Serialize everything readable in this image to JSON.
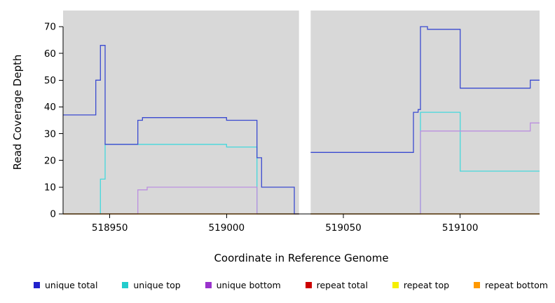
{
  "chart_data": {
    "type": "line",
    "subtype": "step",
    "title": "",
    "xlabel": "Coordinate in Reference Genome",
    "ylabel": "Read Coverage Depth",
    "xlim": [
      518930,
      519134
    ],
    "ylim": [
      0,
      70
    ],
    "xticks": [
      518950,
      519000,
      519050,
      519100
    ],
    "yticks": [
      0,
      10,
      20,
      30,
      40,
      50,
      60,
      70
    ],
    "grid": "off",
    "legend_position": "bottom",
    "panel_bg": "#d8d8d8",
    "gap_region": [
      519031,
      519036
    ],
    "series": [
      {
        "name": "unique-total",
        "label": "unique total",
        "color": "#3a4ad0",
        "swatch": "#2222cc",
        "z": 6,
        "segments": [
          {
            "points": [
              [
                518930,
                37
              ],
              [
                518944,
                50
              ],
              [
                518946,
                63
              ],
              [
                518948,
                26
              ],
              [
                518962,
                35
              ],
              [
                518964,
                36
              ],
              [
                519000,
                35
              ],
              [
                519013,
                21
              ],
              [
                519015,
                10
              ],
              [
                519029,
                0
              ]
            ],
            "xend": 519031
          },
          {
            "points": [
              [
                519036,
                23
              ],
              [
                519080,
                38
              ],
              [
                519082,
                39
              ],
              [
                519083,
                70
              ],
              [
                519086,
                69
              ],
              [
                519100,
                47
              ],
              [
                519130,
                50
              ]
            ],
            "xend": 519134
          }
        ]
      },
      {
        "name": "unique-top",
        "label": "unique top",
        "color": "#45d8dc",
        "swatch": "#22cccc",
        "z": 1,
        "segments": [
          {
            "points": [
              [
                518930,
                0
              ],
              [
                518946,
                13
              ],
              [
                518948,
                26
              ],
              [
                519000,
                25
              ],
              [
                519013,
                0
              ]
            ],
            "xend": 519031
          },
          {
            "points": [
              [
                519036,
                0
              ],
              [
                519083,
                38
              ],
              [
                519100,
                16
              ]
            ],
            "xend": 519134
          }
        ]
      },
      {
        "name": "unique-bottom",
        "label": "unique bottom",
        "color": "#bb8fdf",
        "swatch": "#9933cc",
        "z": 2,
        "segments": [
          {
            "points": [
              [
                518930,
                0
              ],
              [
                518962,
                9
              ],
              [
                518966,
                10
              ],
              [
                519013,
                0
              ]
            ],
            "xend": 519031
          },
          {
            "points": [
              [
                519036,
                0
              ],
              [
                519083,
                31
              ],
              [
                519130,
                34
              ]
            ],
            "xend": 519134
          }
        ]
      },
      {
        "name": "repeat-total",
        "label": "repeat total",
        "color": "#cc2222",
        "swatch": "#cc0000",
        "z": 3,
        "segments": [
          {
            "points": [
              [
                518930,
                0
              ]
            ],
            "xend": 519031
          },
          {
            "points": [
              [
                519036,
                0
              ]
            ],
            "xend": 519134
          }
        ]
      },
      {
        "name": "repeat-top",
        "label": "repeat top",
        "color": "#f2e637",
        "swatch": "#f5ef00",
        "z": 4,
        "segments": [
          {
            "points": [
              [
                518930,
                0
              ]
            ],
            "xend": 519031
          },
          {
            "points": [
              [
                519036,
                0
              ]
            ],
            "xend": 519134
          }
        ]
      },
      {
        "name": "repeat-bottom",
        "label": "repeat bottom",
        "color": "#f5a020",
        "swatch": "#ff9900",
        "z": 5,
        "segments": [
          {
            "points": [
              [
                518930,
                0
              ]
            ],
            "xend": 519031
          },
          {
            "points": [
              [
                519036,
                0
              ]
            ],
            "xend": 519134
          }
        ]
      }
    ]
  }
}
